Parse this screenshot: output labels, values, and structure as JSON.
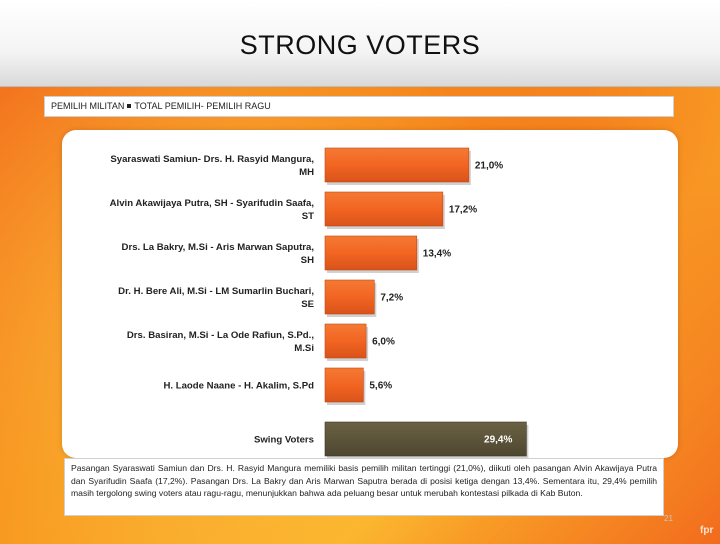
{
  "title": "STRONG VOTERS",
  "legend": {
    "item1": "PEMILIH MILITAN",
    "item2": "TOTAL PEMILIH- PEMILIH RAGU"
  },
  "chart_data": {
    "type": "bar",
    "orientation": "horizontal",
    "categories": [
      [
        "Syaraswati Samiun- Drs. H. Rasyid Mangura,",
        "MH"
      ],
      [
        "Alvin Akawijaya Putra, SH - Syarifudin Saafa,",
        "ST"
      ],
      [
        "Drs. La Bakry, M.Si - Aris Marwan Saputra,",
        "SH"
      ],
      [
        "Dr. H. Bere Ali, M.Si - LM Sumarlin Buchari,",
        "SE"
      ],
      [
        "Drs. Basiran, M.Si - La Ode Rafiun, S.Pd.,",
        "M.Si"
      ],
      [
        "H. Laode Naane - H. Akalim, S.Pd"
      ],
      [
        "Swing Voters"
      ]
    ],
    "values": [
      21.0,
      17.2,
      13.4,
      7.2,
      6.0,
      5.6,
      29.4
    ],
    "value_labels": [
      "21,0%",
      "17,2%",
      "13,4%",
      "7,2%",
      "6,0%",
      "5,6%",
      "29,4%"
    ],
    "colors": [
      "#f26522",
      "#f26522",
      "#f26522",
      "#f26522",
      "#f26522",
      "#f26522",
      "#5c5338"
    ],
    "xlim": [
      0,
      30
    ],
    "grid": false
  },
  "note": "Pasangan Syaraswati Samiun dan Drs. H. Rasyid Mangura memiliki basis pemilih militan tertinggi (21,0%), diikuti oleh pasangan Alvin Akawijaya Putra dan Syarifudin Saafa (17,2%). Pasangan Drs. La Bakry dan Aris Marwan Saputra berada di posisi ketiga dengan 13,4%. Sementara itu, 29,4% pemilih masih tergolong swing voters atau ragu-ragu, menunjukkan bahwa ada peluang besar untuk merubah kontestasi pilkada di Kab Buton.",
  "page_number": "21",
  "watermark": "fpr"
}
